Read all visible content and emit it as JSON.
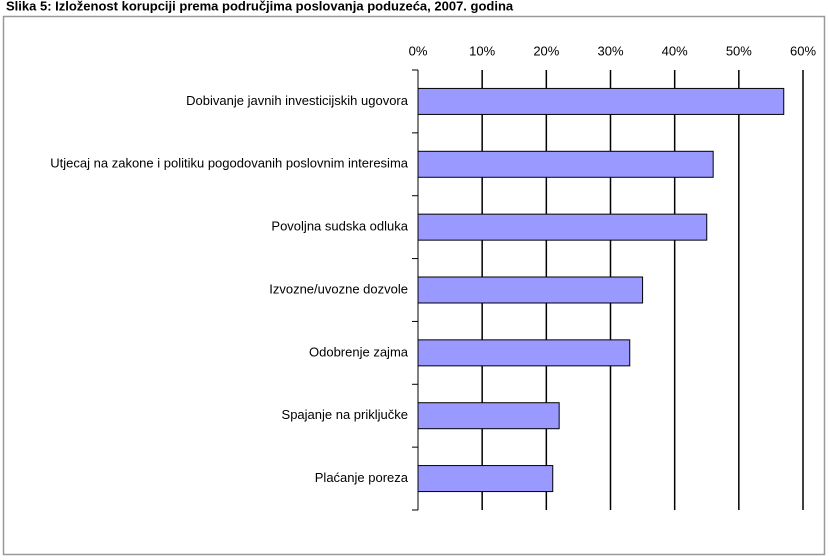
{
  "chart_data": {
    "type": "bar",
    "orientation": "horizontal",
    "title": "Slika 5: Izloženost korupciji prema područjima poslovanja poduzeća, 2007. godina",
    "categories": [
      "Dobivanje javnih investicijskih ugovora",
      "Utjecaj na zakone i politiku pogodovanih poslovnim interesima",
      "Povoljna sudska odluka",
      "Izvozne/uvozne dozvole",
      "Odobrenje zajma",
      "Spajanje na priključke",
      "Plaćanje poreza"
    ],
    "values": [
      57,
      46,
      45,
      35,
      33,
      22,
      21
    ],
    "color": "#9999ff",
    "xlim": [
      0,
      60
    ],
    "xticks": [
      {
        "value": 0,
        "label": "0%"
      },
      {
        "value": 10,
        "label": "10%"
      },
      {
        "value": 20,
        "label": "20%"
      },
      {
        "value": 30,
        "label": "30%"
      },
      {
        "value": 40,
        "label": "40%"
      },
      {
        "value": 50,
        "label": "50%"
      },
      {
        "value": 60,
        "label": "60%"
      }
    ],
    "grid": true
  }
}
